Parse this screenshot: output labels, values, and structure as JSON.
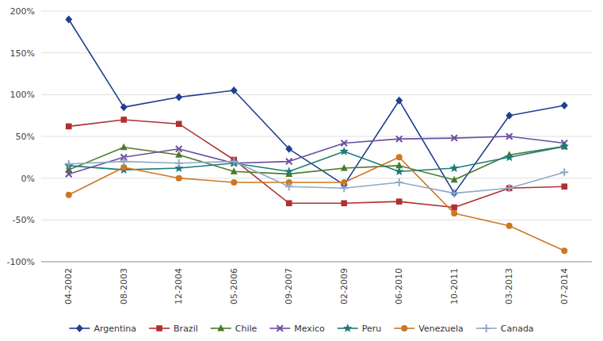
{
  "chart_data": {
    "type": "line",
    "categories": [
      "04-2002",
      "08-2003",
      "12-2004",
      "05-2006",
      "09-2007",
      "02-2009",
      "06-2010",
      "10-2011",
      "03-2013",
      "07-2014"
    ],
    "series": [
      {
        "name": "Argentina",
        "color": "#1F3F8F",
        "marker": "diamond",
        "values": [
          190,
          85,
          97,
          105,
          35,
          -8,
          93,
          -18,
          75,
          87
        ]
      },
      {
        "name": "Brazil",
        "color": "#B03030",
        "marker": "square",
        "values": [
          62,
          70,
          65,
          22,
          -30,
          -30,
          -28,
          -35,
          -12,
          -10
        ]
      },
      {
        "name": "Chile",
        "color": "#4A7A2C",
        "marker": "triangle",
        "values": [
          10,
          37,
          28,
          8,
          5,
          12,
          15,
          -2,
          28,
          38
        ]
      },
      {
        "name": "Mexico",
        "color": "#6B4E9F",
        "marker": "x",
        "values": [
          5,
          25,
          35,
          18,
          20,
          42,
          47,
          48,
          50,
          42
        ]
      },
      {
        "name": "Peru",
        "color": "#1E7B7B",
        "marker": "star",
        "values": [
          15,
          10,
          12,
          18,
          8,
          32,
          8,
          12,
          25,
          38
        ]
      },
      {
        "name": "Venezuela",
        "color": "#CC7722",
        "marker": "circle",
        "values": [
          -20,
          13,
          0,
          -5,
          -5,
          -5,
          25,
          -42,
          -57,
          -87
        ]
      },
      {
        "name": "Canada",
        "color": "#90A8C8",
        "marker": "plus",
        "values": [
          17,
          20,
          18,
          20,
          -10,
          -12,
          -5,
          -18,
          -12,
          7
        ]
      }
    ],
    "ylim": [
      -100,
      200
    ],
    "yticks": [
      {
        "value": -100,
        "label": "-100%"
      },
      {
        "value": -50,
        "label": "-50%"
      },
      {
        "value": 0,
        "label": "0%"
      },
      {
        "value": 50,
        "label": "50%"
      },
      {
        "value": 100,
        "label": "100%"
      },
      {
        "value": 150,
        "label": "150%"
      },
      {
        "value": 200,
        "label": "200%"
      }
    ],
    "grid": true,
    "legend": "bottom"
  }
}
